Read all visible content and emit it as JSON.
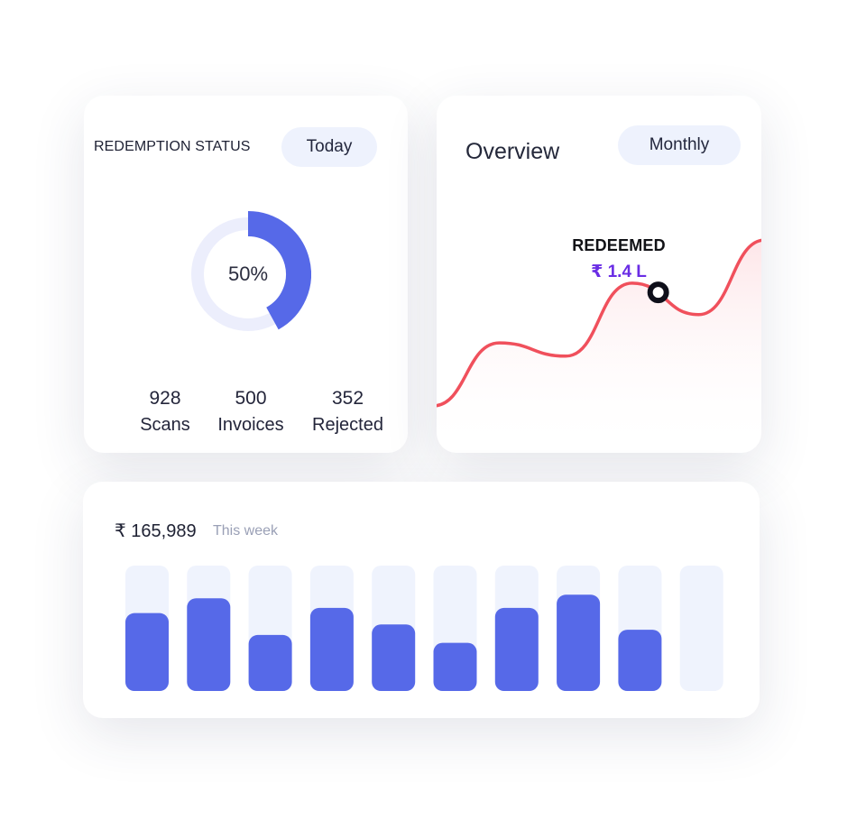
{
  "redemption": {
    "title": "REDEMPTION STATUS",
    "filter_label": "Today",
    "progress_percent": 50,
    "progress_label": "50%",
    "stats": [
      {
        "value": "928",
        "label": "Scans"
      },
      {
        "value": "500",
        "label": "Invoices"
      },
      {
        "value": "352",
        "label": "Rejected"
      }
    ]
  },
  "overview": {
    "title": "Overview",
    "filter_label": "Monthly",
    "tooltip_label": "REDEEMED",
    "tooltip_value": "₹ 1.4 L"
  },
  "weekly": {
    "amount": "₹ 165,989",
    "caption": "This week"
  },
  "chart_data": [
    {
      "type": "line",
      "title": "",
      "values": [
        0.0,
        0.38,
        0.3,
        0.74,
        0.55,
        1.0
      ],
      "highlight_index": 3,
      "colors": {
        "line": "#f0505c",
        "fill": "#fde8ea",
        "marker": "#0e0f1a"
      }
    },
    {
      "type": "bar",
      "title": "",
      "values": [
        0.56,
        0.73,
        0.31,
        0.62,
        0.43,
        0.22,
        0.62,
        0.77,
        0.37,
        0.0
      ],
      "ylim": [
        0,
        1
      ],
      "colors": {
        "bar": "#5669e8",
        "track": "#eff3fd"
      }
    }
  ],
  "colors": {
    "accent": "#5669e8",
    "donut_track": "#eceefc",
    "pill_bg": "#eef2fd",
    "line": "#f0505c",
    "highlight": "#6a2de5"
  }
}
